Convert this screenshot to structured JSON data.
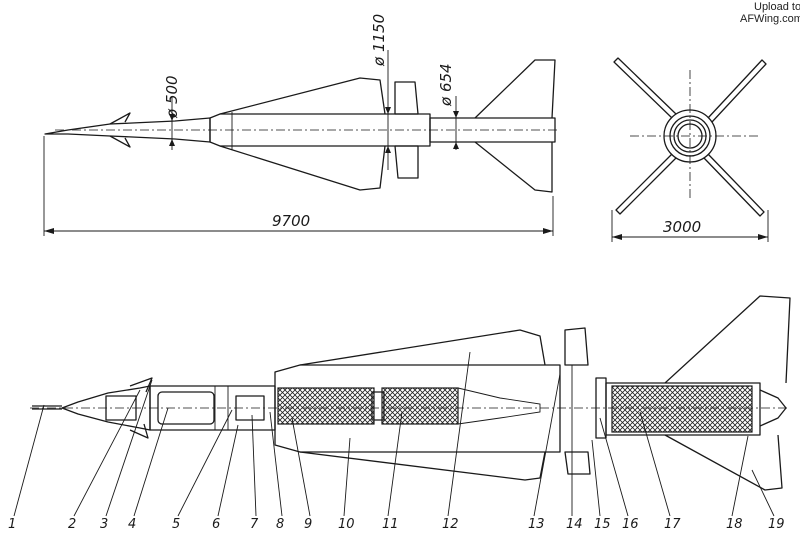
{
  "watermark": {
    "line1": "Upload to",
    "line2": "AFWing.com"
  },
  "dimensions": {
    "length": "9700",
    "span": "3000",
    "diameter_nose": "ø 500",
    "diameter_wing": "ø 1150",
    "diameter_rear": "ø 654"
  },
  "callouts": [
    "1",
    "2",
    "3",
    "4",
    "5",
    "6",
    "7",
    "8",
    "9",
    "10",
    "11",
    "12",
    "13",
    "14",
    "15",
    "16",
    "17",
    "18",
    "19"
  ]
}
